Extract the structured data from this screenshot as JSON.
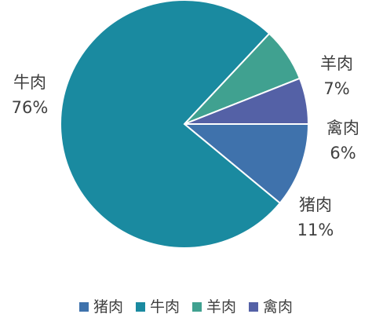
{
  "chart_data": {
    "type": "pie",
    "categories": [
      "猪肉",
      "牛肉",
      "羊肉",
      "禽肉"
    ],
    "values": [
      11,
      76,
      7,
      6
    ],
    "value_labels": [
      "11%",
      "76%",
      "7%",
      "6%"
    ],
    "colors": [
      "#3F72AC",
      "#1A8AA0",
      "#40A190",
      "#5461A6"
    ],
    "legend_position": "bottom",
    "start_angle_deg": 0,
    "direction": "clockwise"
  }
}
